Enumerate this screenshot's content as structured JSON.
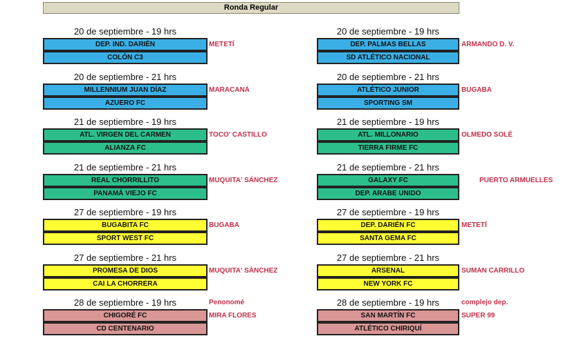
{
  "header": {
    "title": "Ronda Regular"
  },
  "rows": [
    {
      "color": "#3aafe6",
      "left": {
        "date": "20 de septiembre - 19 hrs",
        "teams": [
          "DEP. IND. DARIÉN",
          "COLÓN C3"
        ],
        "venue": [
          "METETÍ"
        ]
      },
      "right": {
        "date": "20 de septiembre - 19 hrs",
        "teams": [
          "DEP. PALMAS BELLAS",
          "SD ATLÉTICO NACIONAL"
        ],
        "venue": [
          "ARMANDO D. V."
        ]
      }
    },
    {
      "color": "#3aafe6",
      "left": {
        "date": "20 de septiembre - 21 hrs",
        "teams": [
          "MILLENNIUM JUAN DÍAZ",
          "AZUERO FC"
        ],
        "venue": [
          "MARACANÁ"
        ]
      },
      "right": {
        "date": "20 de septiembre - 21 hrs",
        "teams": [
          "ATLÉTICO JUNIOR",
          "SPORTING SM"
        ],
        "venue": [
          "BUGABA"
        ]
      }
    },
    {
      "color": "#2cbf8c",
      "left": {
        "date": "21 de septiembre - 19 hrs",
        "teams": [
          "ATL. VIRGEN DEL CARMEN",
          "ALIANZA FC"
        ],
        "venue": [
          "TOCO' CASTILLO"
        ]
      },
      "right": {
        "date": "21 de septiembre - 19 hrs",
        "teams": [
          "ATL. MILLONARIO",
          "TIERRA FIRME FC"
        ],
        "venue": [
          "OLMEDO SOLÉ"
        ]
      }
    },
    {
      "color": "#2cbf8c",
      "left": {
        "date": "21 de septiembre - 21 hrs",
        "teams": [
          "REAL CHORRILLITO",
          "PANAMÁ VIEJO FC"
        ],
        "venue": [
          "MUQUITA' SÁNCHEZ"
        ]
      },
      "right": {
        "date": "21 de septiembre - 21 hrs",
        "teams": [
          "GALAXY FC",
          "DEP. ARABE UNIDO"
        ],
        "venue": [
          "PUERTO ARMUELLES"
        ]
      }
    },
    {
      "color": "#ffff33",
      "left": {
        "date": "27 de septiembre - 19 hrs",
        "teams": [
          "BUGABITA FC",
          "SPORT WEST FC"
        ],
        "venue": [
          "BUGABA"
        ]
      },
      "right": {
        "date": "27 de septiembre - 19 hrs",
        "teams": [
          "DEP. DARIÉN FC",
          "SANTA GEMA FC"
        ],
        "venue": [
          "METETÍ"
        ]
      }
    },
    {
      "color": "#ffff33",
      "left": {
        "date": "27 de septiembre - 21 hrs",
        "teams": [
          "PROMESA DE DIOS",
          "CAI LA CHORRERA"
        ],
        "venue": [
          "MUQUITA' SÁNCHEZ"
        ]
      },
      "right": {
        "date": "27 de septiembre - 21 hrs",
        "teams": [
          "ARSENAL",
          "NEW YORK FC"
        ],
        "venue": [
          "SUMAN CARRILLO"
        ]
      }
    },
    {
      "color": "#d99694",
      "left": {
        "date": "28 de septiembre - 19 hrs",
        "teams": [
          "CHIGORÉ FC",
          "CD CENTENARIO"
        ],
        "venue": [
          "Penonomé",
          "MIRA FLORES"
        ]
      },
      "right": {
        "date": "28 de septiembre - 19 hrs",
        "teams": [
          "SAN MARTÍN FC",
          "ATLÉTICO CHIRIQUÍ"
        ],
        "venue": [
          "complejo dep.",
          "SUPER 99"
        ]
      }
    }
  ]
}
